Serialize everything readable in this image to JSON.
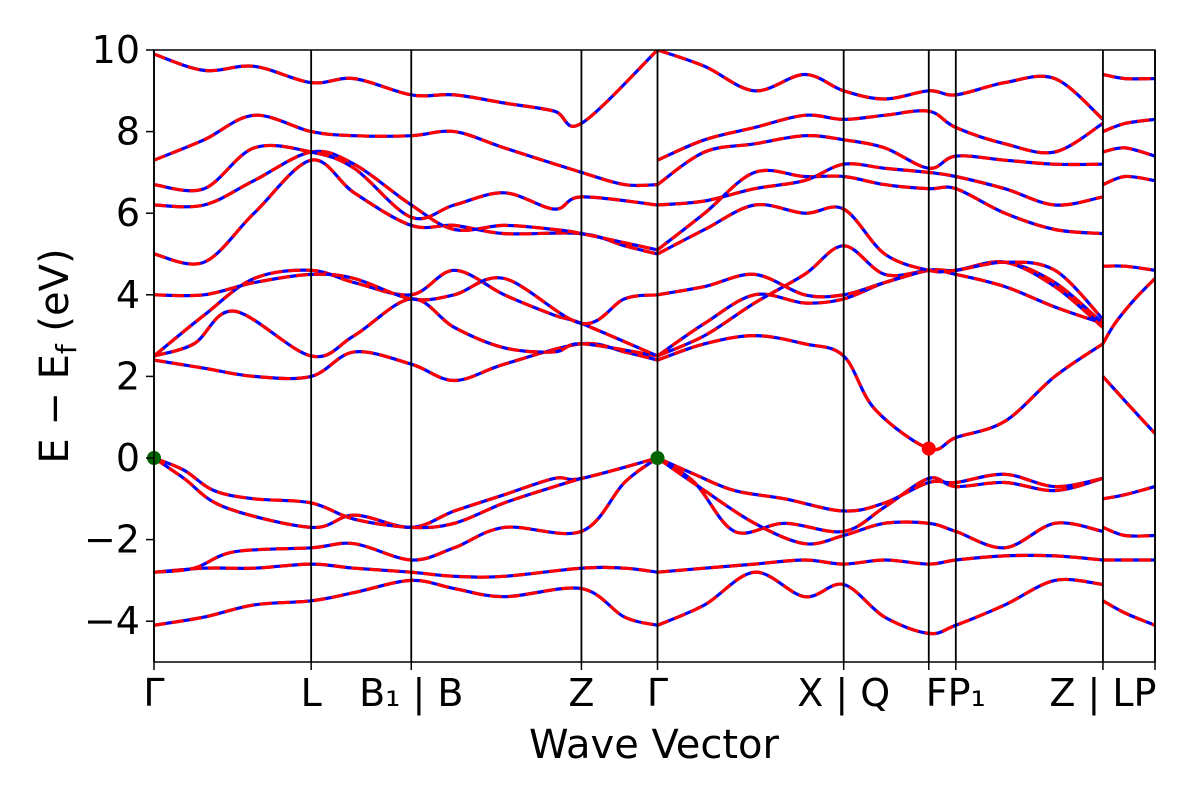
{
  "chart_data": {
    "type": "line",
    "xlabel": "Wave Vector",
    "ylabel": "E − E_f (eV)",
    "ylabel_parts": {
      "main": "E − E",
      "sub": "f",
      "unit": " (eV)"
    },
    "ylim": [
      -5,
      10
    ],
    "xlim": [
      0,
      1
    ],
    "y_ticks": [
      -4,
      -2,
      0,
      2,
      4,
      6,
      8,
      10
    ],
    "y_tick_labels": [
      "−4",
      "−2",
      "0",
      "2",
      "4",
      "6",
      "8",
      "10"
    ],
    "grid": false,
    "colors": {
      "band_primary": "#ff0000",
      "band_overlay": "#0000ff",
      "vbm_marker": "#006400",
      "cbm_marker": "#ff0000",
      "kpath_line": "#000000"
    },
    "k_points": [
      {
        "x": 0.0,
        "label": "Γ"
      },
      {
        "x": 0.157,
        "label": "L"
      },
      {
        "x": 0.257,
        "label": "B₁ | B"
      },
      {
        "x": 0.427,
        "label": "Z"
      },
      {
        "x": 0.503,
        "label": "Γ"
      },
      {
        "x": 0.689,
        "label": "X | Q"
      },
      {
        "x": 0.774,
        "label": ""
      },
      {
        "x": 0.801,
        "label": "FP₁"
      },
      {
        "x": 0.948,
        "label": "Z | LP"
      },
      {
        "x": 1.0,
        "label": ""
      }
    ],
    "markers": [
      {
        "name": "VBM",
        "x": 0.0,
        "y": 0.0,
        "color": "#006400"
      },
      {
        "name": "VBM",
        "x": 0.503,
        "y": 0.0,
        "color": "#006400"
      },
      {
        "name": "CBM",
        "x": 0.774,
        "y": 0.23,
        "color": "#ff0000"
      }
    ],
    "series": [
      {
        "x": [
          0,
          0.05,
          0.1,
          0.157,
          0.2,
          0.257,
          0.3,
          0.35,
          0.427,
          0.47,
          0.503
        ],
        "y": [
          -4.1,
          -3.9,
          -3.6,
          -3.5,
          -3.3,
          -3.0,
          -3.2,
          -3.4,
          -3.2,
          -3.9,
          -4.1
        ]
      },
      {
        "x": [
          0.503,
          0.55,
          0.6,
          0.65,
          0.689,
          0.73,
          0.774,
          0.801,
          0.85,
          0.9,
          0.948
        ],
        "y": [
          -4.1,
          -3.6,
          -2.8,
          -3.4,
          -3.1,
          -3.9,
          -4.3,
          -4.1,
          -3.6,
          -3.0,
          -3.1
        ]
      },
      {
        "x": [
          0,
          0.05,
          0.1,
          0.157,
          0.2,
          0.257,
          0.3,
          0.35,
          0.427,
          0.47,
          0.503
        ],
        "y": [
          -2.8,
          -2.7,
          -2.7,
          -2.6,
          -2.7,
          -2.8,
          -2.9,
          -2.9,
          -2.7,
          -2.7,
          -2.8
        ]
      },
      {
        "x": [
          0.503,
          0.55,
          0.6,
          0.65,
          0.689,
          0.73,
          0.774,
          0.801,
          0.85,
          0.9,
          0.948
        ],
        "y": [
          -2.8,
          -2.7,
          -2.6,
          -2.5,
          -2.6,
          -2.5,
          -2.6,
          -2.5,
          -2.4,
          -2.4,
          -2.5
        ]
      },
      {
        "x": [
          0,
          0.04,
          0.08,
          0.157,
          0.2,
          0.257,
          0.3,
          0.35,
          0.427,
          0.47,
          0.503
        ],
        "y": [
          -2.8,
          -2.7,
          -2.3,
          -2.2,
          -2.1,
          -2.5,
          -2.2,
          -1.7,
          -1.8,
          -0.6,
          0.0
        ]
      },
      {
        "x": [
          0,
          0.03,
          0.07,
          0.157,
          0.2,
          0.257,
          0.3,
          0.35,
          0.4,
          0.427,
          0.503
        ],
        "y": [
          0.0,
          -0.5,
          -1.2,
          -1.7,
          -1.4,
          -1.7,
          -1.3,
          -0.9,
          -0.5,
          -0.5,
          0.0
        ]
      },
      {
        "x": [
          0,
          0.03,
          0.06,
          0.1,
          0.157,
          0.2,
          0.257,
          0.3,
          0.35,
          0.4,
          0.427
        ],
        "y": [
          0.0,
          -0.3,
          -0.8,
          -1.0,
          -1.1,
          -1.5,
          -1.7,
          -1.6,
          -1.1,
          -0.7,
          -0.5
        ]
      },
      {
        "x": [
          0.503,
          0.54,
          0.58,
          0.63,
          0.689,
          0.73,
          0.774,
          0.801,
          0.85,
          0.9,
          0.948
        ],
        "y": [
          0.0,
          -0.6,
          -1.8,
          -1.6,
          -1.8,
          -1.2,
          -0.5,
          -0.7,
          -0.6,
          -0.8,
          -0.5
        ]
      },
      {
        "x": [
          0.503,
          0.54,
          0.58,
          0.63,
          0.689,
          0.73,
          0.774,
          0.801,
          0.85,
          0.9,
          0.948
        ],
        "y": [
          0.0,
          -0.4,
          -0.8,
          -1.0,
          -1.3,
          -1.1,
          -0.6,
          -0.6,
          -0.4,
          -0.7,
          -0.5
        ]
      },
      {
        "x": [
          0.503,
          0.55,
          0.6,
          0.65,
          0.689,
          0.73,
          0.774,
          0.801,
          0.85,
          0.9,
          0.948
        ],
        "y": [
          0.0,
          -0.8,
          -1.6,
          -2.1,
          -1.9,
          -1.6,
          -1.6,
          -1.8,
          -2.2,
          -1.6,
          -1.8
        ]
      },
      {
        "x": [
          0,
          0.05,
          0.1,
          0.157,
          0.2,
          0.257,
          0.3,
          0.35,
          0.427,
          0.47,
          0.503
        ],
        "y": [
          2.4,
          2.2,
          2.0,
          2.0,
          2.6,
          2.3,
          1.9,
          2.3,
          2.8,
          2.6,
          2.4
        ]
      },
      {
        "x": [
          0.503,
          0.55,
          0.6,
          0.65,
          0.689,
          0.72,
          0.774,
          0.801,
          0.85,
          0.9,
          0.948
        ],
        "y": [
          2.4,
          2.8,
          3.0,
          2.8,
          2.5,
          1.2,
          0.23,
          0.5,
          0.9,
          2.0,
          2.8
        ]
      },
      {
        "x": [
          0,
          0.04,
          0.08,
          0.157,
          0.2,
          0.257,
          0.3,
          0.35,
          0.4,
          0.427,
          0.503
        ],
        "y": [
          2.5,
          2.8,
          3.6,
          2.5,
          3.0,
          3.9,
          3.2,
          2.7,
          2.6,
          2.8,
          2.5
        ]
      },
      {
        "x": [
          0,
          0.05,
          0.1,
          0.157,
          0.2,
          0.257,
          0.3,
          0.35,
          0.4,
          0.427,
          0.503
        ],
        "y": [
          2.5,
          3.5,
          4.4,
          4.6,
          4.3,
          4.0,
          4.6,
          4.0,
          3.5,
          3.3,
          2.5
        ]
      },
      {
        "x": [
          0.503,
          0.55,
          0.6,
          0.65,
          0.689,
          0.73,
          0.774,
          0.801,
          0.85,
          0.9,
          0.948
        ],
        "y": [
          2.5,
          3.3,
          4.0,
          3.8,
          3.9,
          4.3,
          4.6,
          4.5,
          4.2,
          3.7,
          3.3
        ]
      },
      {
        "x": [
          0.503,
          0.55,
          0.6,
          0.65,
          0.689,
          0.73,
          0.774,
          0.801,
          0.85,
          0.9,
          0.948
        ],
        "y": [
          2.5,
          3.0,
          3.8,
          4.5,
          5.2,
          4.5,
          4.6,
          4.6,
          4.8,
          4.3,
          3.3
        ]
      },
      {
        "x": [
          0,
          0.05,
          0.1,
          0.157,
          0.2,
          0.257,
          0.3,
          0.35,
          0.427,
          0.47,
          0.503
        ],
        "y": [
          4.0,
          4.0,
          4.3,
          4.5,
          4.4,
          3.9,
          4.0,
          4.4,
          3.3,
          3.9,
          4.0
        ]
      },
      {
        "x": [
          0.503,
          0.55,
          0.6,
          0.65,
          0.689,
          0.73,
          0.774,
          0.801,
          0.85,
          0.9,
          0.948
        ],
        "y": [
          4.0,
          4.2,
          4.5,
          4.0,
          4.0,
          4.3,
          4.6,
          4.6,
          4.8,
          4.2,
          3.2
        ]
      },
      {
        "x": [
          0,
          0.05,
          0.1,
          0.157,
          0.2,
          0.257,
          0.3,
          0.35,
          0.427,
          0.47,
          0.503
        ],
        "y": [
          5.0,
          4.8,
          6.0,
          7.3,
          6.5,
          5.7,
          5.7,
          5.5,
          5.5,
          5.2,
          5.0
        ]
      },
      {
        "x": [
          0.503,
          0.55,
          0.6,
          0.65,
          0.689,
          0.73,
          0.774,
          0.801,
          0.85,
          0.9,
          0.948
        ],
        "y": [
          5.0,
          5.6,
          6.2,
          6.0,
          6.1,
          5.0,
          4.6,
          4.6,
          4.8,
          4.6,
          3.4
        ]
      },
      {
        "x": [
          0,
          0.05,
          0.1,
          0.157,
          0.2,
          0.257,
          0.3,
          0.35,
          0.4,
          0.427,
          0.503
        ],
        "y": [
          6.2,
          6.2,
          6.8,
          7.5,
          7.2,
          6.2,
          5.6,
          5.7,
          5.6,
          5.5,
          5.1
        ]
      },
      {
        "x": [
          0.503,
          0.55,
          0.6,
          0.65,
          0.689,
          0.73,
          0.774,
          0.801,
          0.85,
          0.9,
          0.948
        ],
        "y": [
          5.1,
          6.0,
          7.0,
          6.9,
          6.9,
          6.7,
          6.6,
          6.6,
          6.0,
          5.6,
          5.5
        ]
      },
      {
        "x": [
          0,
          0.05,
          0.1,
          0.157,
          0.2,
          0.257,
          0.3,
          0.35,
          0.4,
          0.427,
          0.503
        ],
        "y": [
          6.7,
          6.6,
          7.6,
          7.5,
          7.1,
          5.9,
          6.2,
          6.5,
          6.1,
          6.4,
          6.2
        ]
      },
      {
        "x": [
          0.503,
          0.55,
          0.6,
          0.65,
          0.689,
          0.73,
          0.774,
          0.801,
          0.85,
          0.9,
          0.948
        ],
        "y": [
          6.2,
          6.3,
          6.6,
          6.8,
          7.2,
          7.1,
          7.0,
          6.9,
          6.6,
          6.2,
          6.4
        ]
      },
      {
        "x": [
          0,
          0.05,
          0.1,
          0.157,
          0.2,
          0.257,
          0.3,
          0.35,
          0.427,
          0.47,
          0.503
        ],
        "y": [
          7.3,
          7.8,
          8.4,
          8.0,
          7.9,
          7.9,
          8.0,
          7.6,
          7.0,
          6.7,
          6.7
        ]
      },
      {
        "x": [
          0.503,
          0.55,
          0.6,
          0.65,
          0.689,
          0.73,
          0.774,
          0.801,
          0.85,
          0.9,
          0.948
        ],
        "y": [
          6.7,
          7.5,
          7.7,
          7.9,
          7.8,
          7.6,
          7.1,
          7.4,
          7.3,
          7.2,
          7.2
        ]
      },
      {
        "x": [
          0,
          0.05,
          0.1,
          0.157,
          0.2,
          0.257,
          0.3,
          0.35,
          0.4,
          0.427,
          0.503
        ],
        "y": [
          9.9,
          9.5,
          9.6,
          9.2,
          9.3,
          8.9,
          8.9,
          8.7,
          8.5,
          8.2,
          10.0
        ]
      },
      {
        "x": [
          0.503,
          0.55,
          0.6,
          0.65,
          0.689,
          0.73,
          0.774,
          0.801,
          0.85,
          0.9,
          0.948
        ],
        "y": [
          7.3,
          7.8,
          8.1,
          8.4,
          8.3,
          8.4,
          8.5,
          8.1,
          7.7,
          7.5,
          8.2
        ]
      },
      {
        "x": [
          0.503,
          0.55,
          0.6,
          0.65,
          0.689,
          0.73,
          0.774,
          0.801,
          0.85,
          0.9,
          0.948
        ],
        "y": [
          10.0,
          9.6,
          9.0,
          9.4,
          9.0,
          8.8,
          9.0,
          8.9,
          9.2,
          9.3,
          8.3
        ]
      },
      {
        "x": [
          0.948,
          0.96,
          0.98,
          1.0
        ],
        "y": [
          2.8,
          3.3,
          3.9,
          4.4
        ]
      },
      {
        "x": [
          0.948,
          0.97,
          1.0
        ],
        "y": [
          2.0,
          1.4,
          0.6
        ]
      },
      {
        "x": [
          0.948,
          0.97,
          1.0
        ],
        "y": [
          -1.0,
          -0.9,
          -0.7
        ]
      },
      {
        "x": [
          0.948,
          0.97,
          1.0
        ],
        "y": [
          -1.7,
          -1.9,
          -1.9
        ]
      },
      {
        "x": [
          0.948,
          0.97,
          1.0
        ],
        "y": [
          -2.5,
          -2.5,
          -2.5
        ]
      },
      {
        "x": [
          0.948,
          0.97,
          1.0
        ],
        "y": [
          -3.5,
          -3.8,
          -4.1
        ]
      },
      {
        "x": [
          0.948,
          0.97,
          1.0
        ],
        "y": [
          4.7,
          4.7,
          4.6
        ]
      },
      {
        "x": [
          0.948,
          0.97,
          1.0
        ],
        "y": [
          6.7,
          6.9,
          6.8
        ]
      },
      {
        "x": [
          0.948,
          0.97,
          1.0
        ],
        "y": [
          7.5,
          7.6,
          7.4
        ]
      },
      {
        "x": [
          0.948,
          0.97,
          1.0
        ],
        "y": [
          9.4,
          9.3,
          9.3
        ]
      },
      {
        "x": [
          0.948,
          0.97,
          1.0
        ],
        "y": [
          8.0,
          8.2,
          8.3
        ]
      }
    ]
  }
}
